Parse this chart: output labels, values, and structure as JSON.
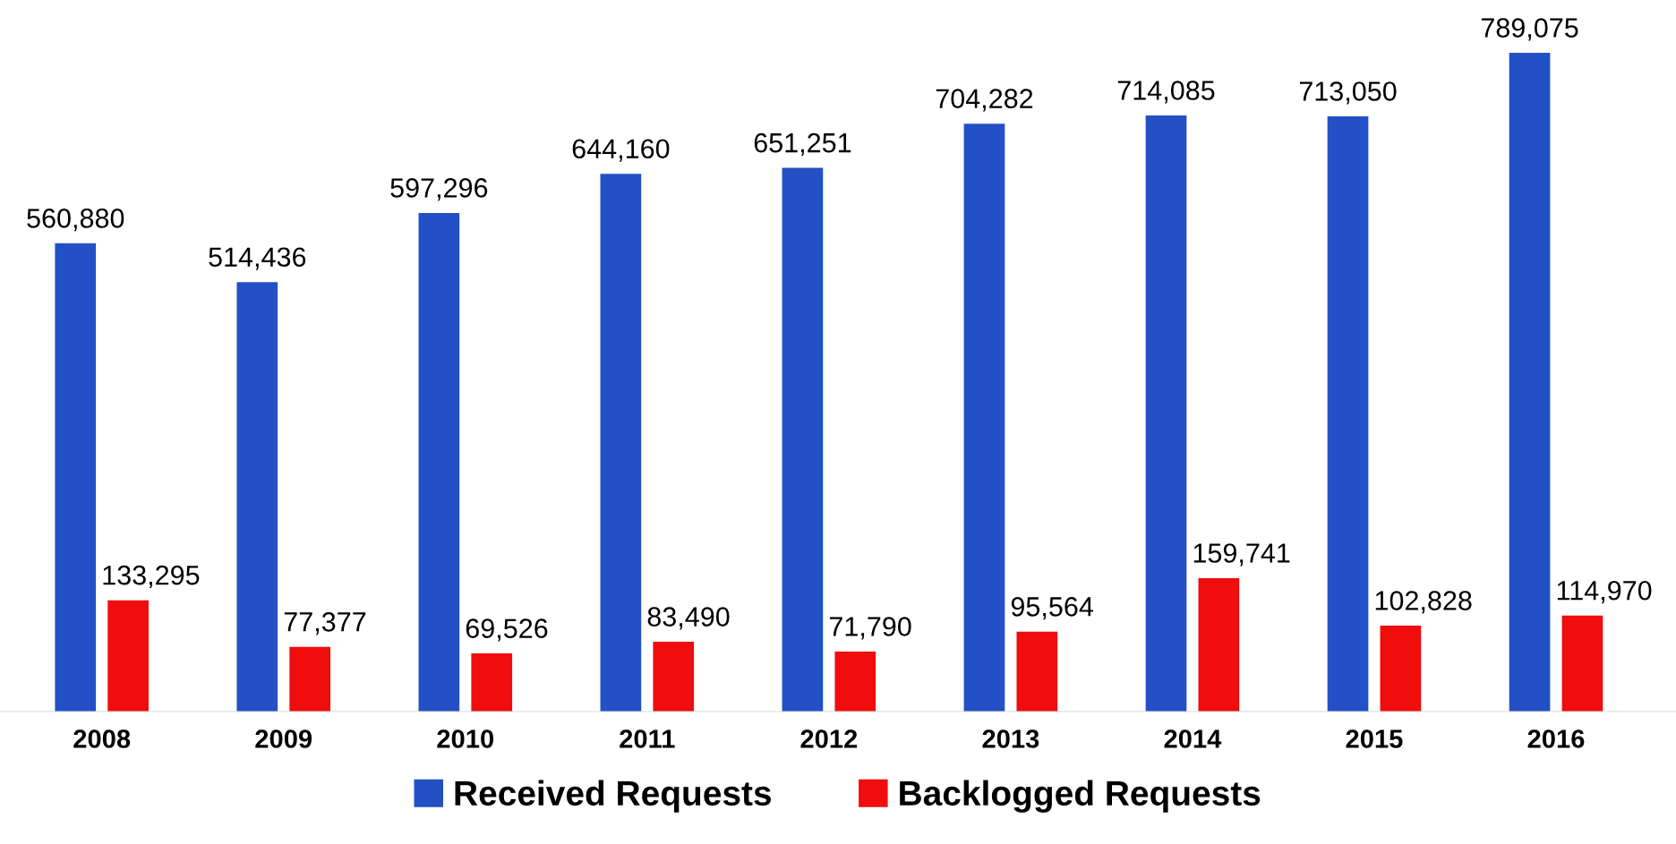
{
  "chart_data": {
    "type": "bar",
    "categories": [
      "2008",
      "2009",
      "2010",
      "2011",
      "2012",
      "2013",
      "2014",
      "2015",
      "2016"
    ],
    "series": [
      {
        "name": "Received Requests",
        "color": "#2350c4",
        "values": [
          560880,
          514436,
          597296,
          644160,
          651251,
          704282,
          714085,
          713050,
          789075
        ],
        "value_labels": [
          "560,880",
          "514,436",
          "597,296",
          "644,160",
          "651,251",
          "704,282",
          "714,085",
          "713,050",
          "789,075"
        ]
      },
      {
        "name": "Backlogged Requests",
        "color": "#f00d0d",
        "values": [
          133295,
          77377,
          69526,
          83490,
          71790,
          95564,
          159741,
          102828,
          114970
        ],
        "value_labels": [
          "133,295",
          "77,377",
          "69,526",
          "83,490",
          "71,790",
          "95,564",
          "159,741",
          "102,828",
          "114,970"
        ]
      }
    ],
    "legend": "bottom",
    "grid": false,
    "tick_labels": "x"
  }
}
